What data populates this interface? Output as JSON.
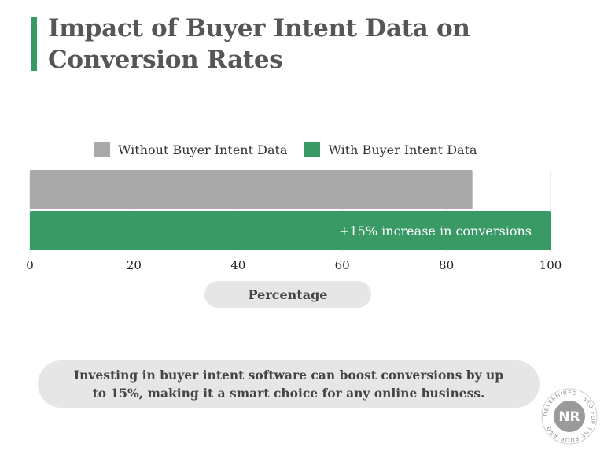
{
  "title": "Impact of Buyer Intent Data on Conversion Rates",
  "colors": {
    "accent": "#3a9a66",
    "without": "#a9a9a9",
    "with": "#3a9a66",
    "grid": "#dddddd"
  },
  "chart_data": {
    "type": "bar",
    "orientation": "horizontal",
    "title": "Impact of Buyer Intent Data on Conversion Rates",
    "xlabel": "Percentage",
    "ylabel": "",
    "xlim": [
      0,
      100
    ],
    "xticks": [
      0,
      20,
      40,
      60,
      80,
      100
    ],
    "grid": true,
    "legend_position": "top",
    "series": [
      {
        "name": "Without Buyer Intent Data",
        "color": "#a9a9a9",
        "values": [
          85
        ]
      },
      {
        "name": "With Buyer Intent Data",
        "color": "#3a9a66",
        "values": [
          100
        ],
        "label": "+15% increase in conversions"
      }
    ]
  },
  "note": "Investing in buyer intent software can boost conversions by up to 15%, making it a smart choice for any online business.",
  "badge": {
    "center": "NR",
    "ring_text": "DETERMINED · SEO FOR THE POOR AND"
  }
}
